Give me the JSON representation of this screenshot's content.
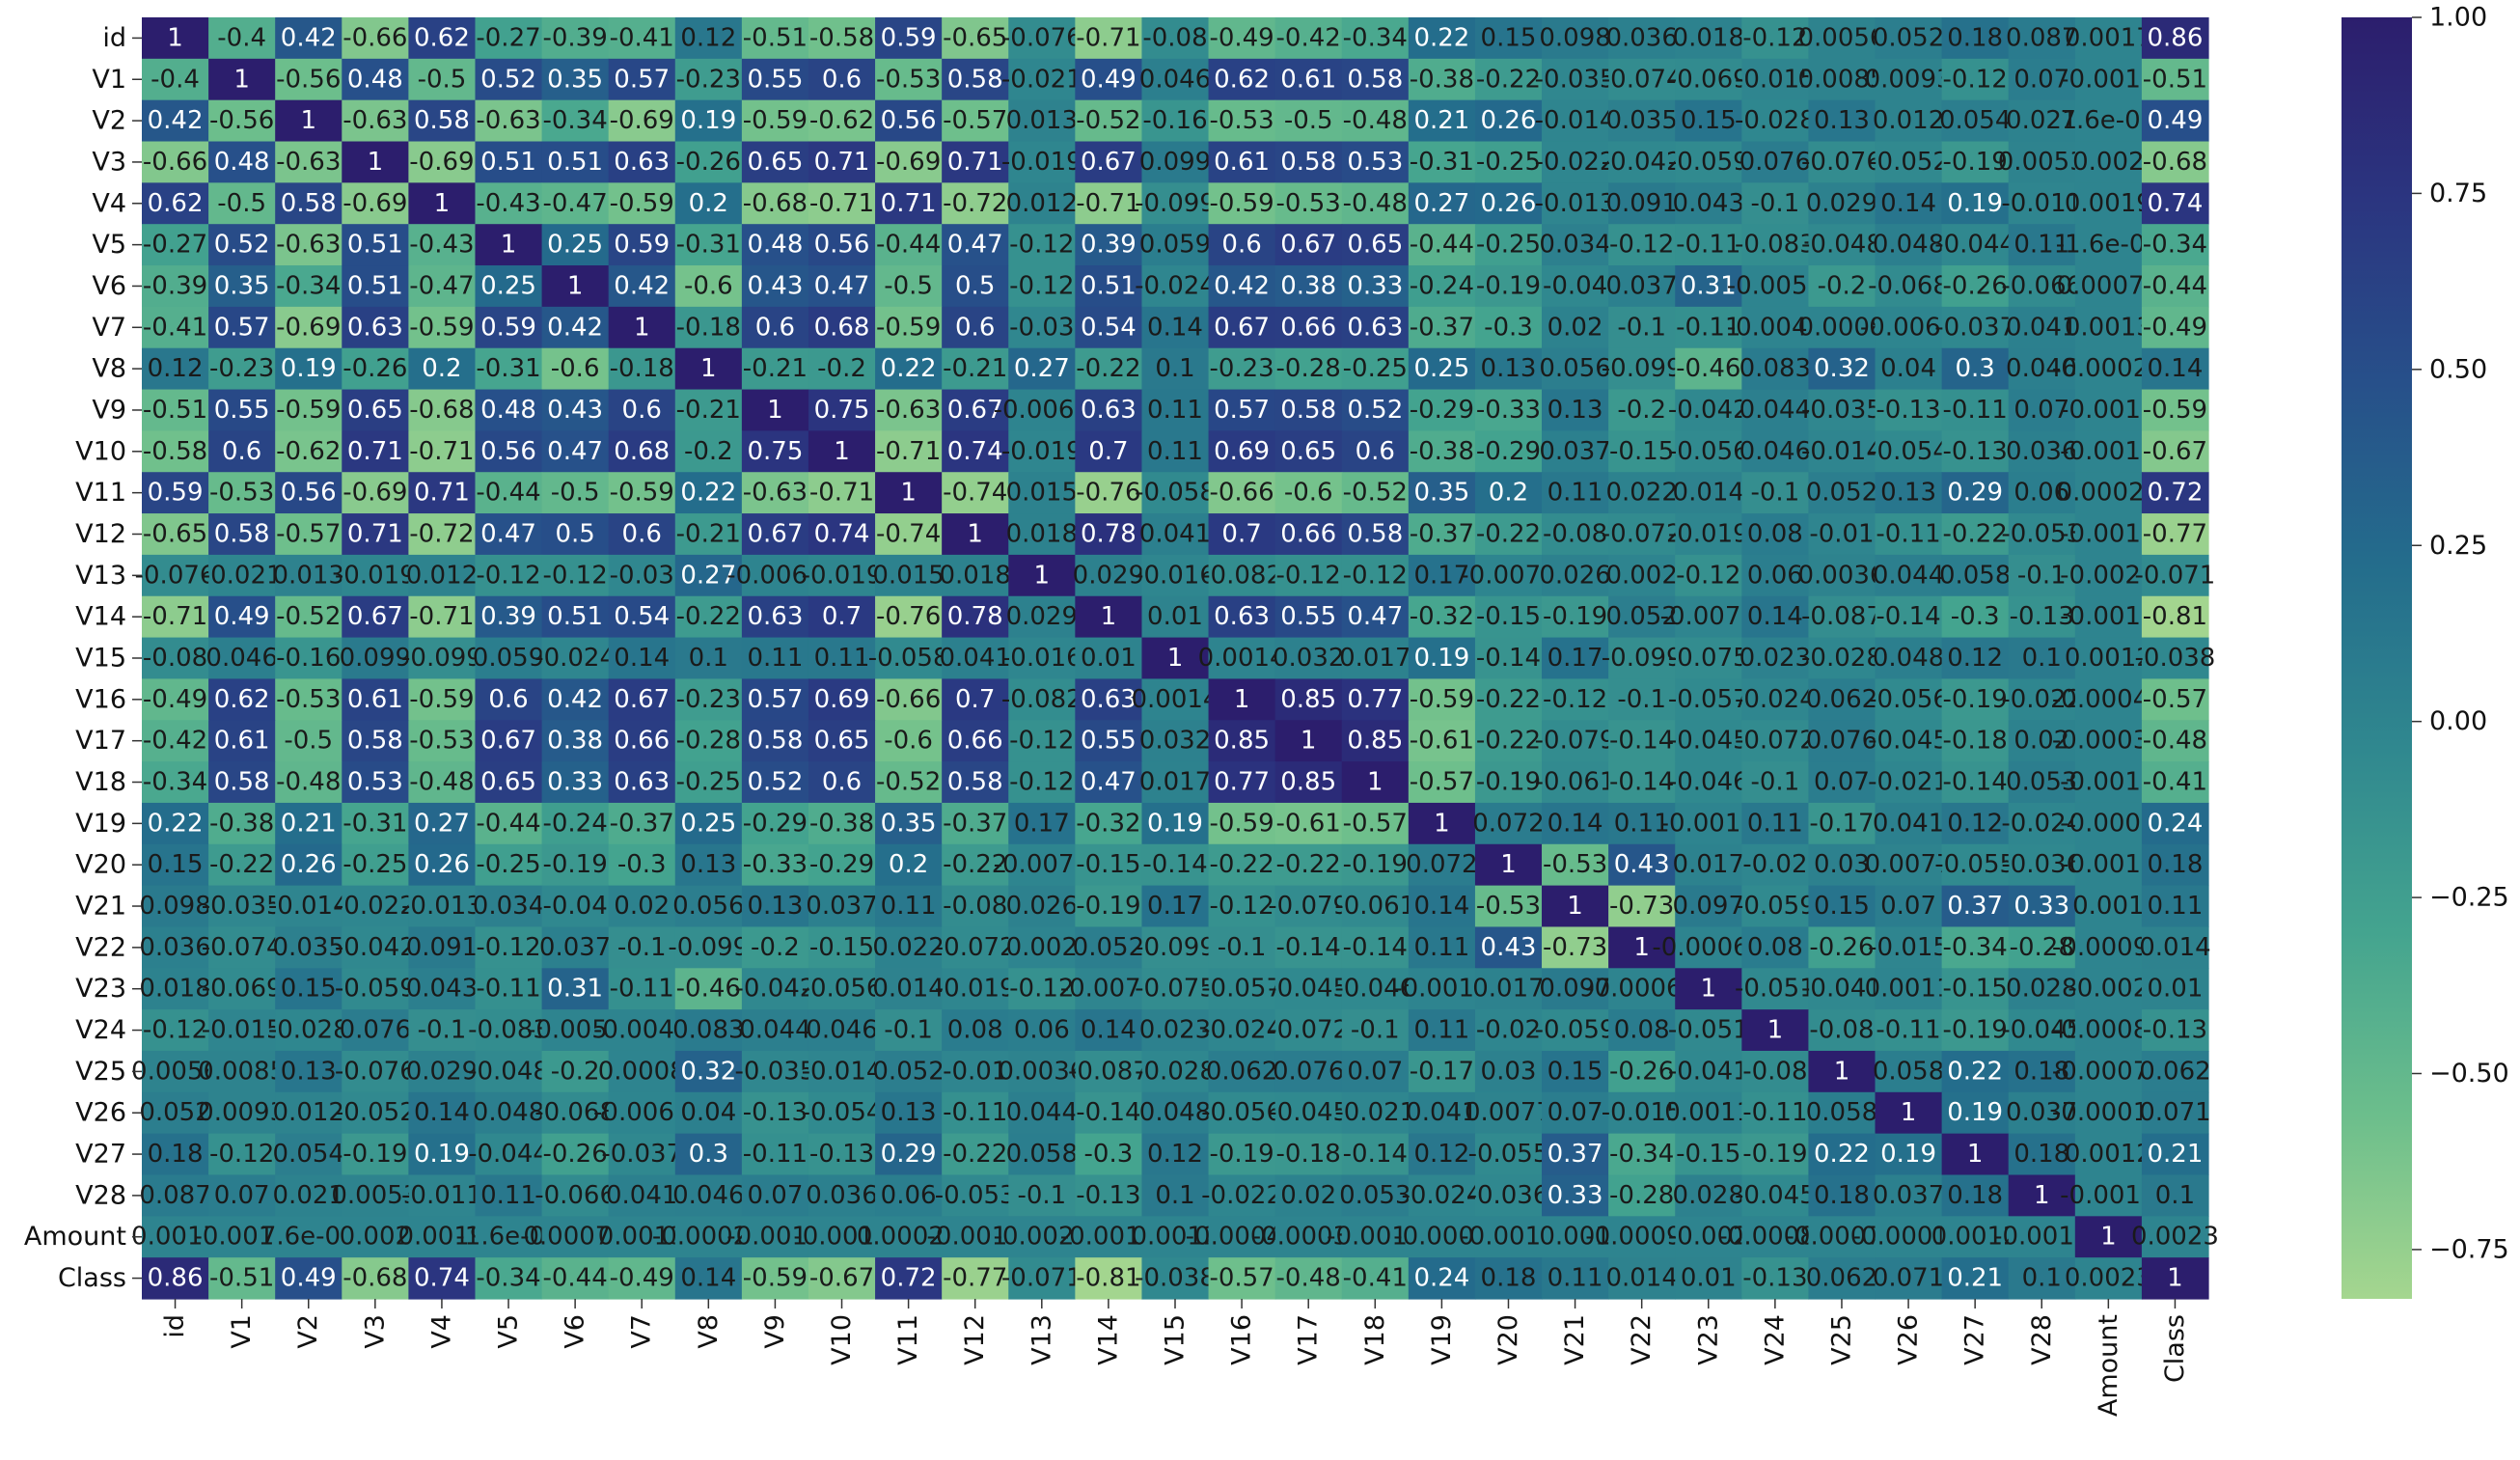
{
  "chart_data": {
    "type": "heatmap",
    "title": "",
    "xlabel": "",
    "ylabel": "",
    "labels": [
      "id",
      "V1",
      "V2",
      "V3",
      "V4",
      "V5",
      "V6",
      "V7",
      "V8",
      "V9",
      "V10",
      "V11",
      "V12",
      "V13",
      "V14",
      "V15",
      "V16",
      "V17",
      "V18",
      "V19",
      "V20",
      "V21",
      "V22",
      "V23",
      "V24",
      "V25",
      "V26",
      "V27",
      "V28",
      "Amount",
      "Class"
    ],
    "colorbar": {
      "vmin": -0.82,
      "vmax": 1.0,
      "ticks": [
        1.0,
        0.75,
        0.5,
        0.25,
        0.0,
        -0.25,
        -0.5,
        -0.75
      ],
      "tick_labels": [
        "1.00",
        "0.75",
        "0.50",
        "0.25",
        "0.00",
        "−0.25",
        "−0.50",
        "−0.75"
      ],
      "colormap": "crest",
      "colors": [
        "#a5d68f",
        "#6cbe8c",
        "#44a48f",
        "#30888f",
        "#246d8c",
        "#27508a",
        "#2b3580",
        "#2c1e6d"
      ]
    },
    "cells": [
      [
        "1",
        "-0.4",
        "0.42",
        "-0.66",
        "0.62",
        "-0.27",
        "-0.39",
        "-0.41",
        "0.12",
        "-0.51",
        "-0.58",
        "0.59",
        "-0.65",
        "-0.076",
        "-0.71",
        "-0.08",
        "-0.49",
        "-0.42",
        "-0.34",
        "0.22",
        "0.15",
        "0.098",
        "0.036",
        "0.018",
        "-0.12",
        "0.0056",
        "0.052",
        "0.18",
        "0.087",
        "0.0017",
        "0.86"
      ],
      [
        "-0.4",
        "1",
        "-0.56",
        "0.48",
        "-0.5",
        "0.52",
        "0.35",
        "0.57",
        "-0.23",
        "0.55",
        "0.6",
        "-0.53",
        "0.58",
        "-0.021",
        "0.49",
        "0.046",
        "0.62",
        "0.61",
        "0.58",
        "-0.38",
        "-0.22",
        "-0.035",
        "-0.074",
        "-0.069",
        "-0.015",
        "0.0085",
        "0.0093",
        "-0.12",
        "0.07",
        "-0.0013",
        "-0.51"
      ],
      [
        "0.42",
        "-0.56",
        "1",
        "-0.63",
        "0.58",
        "-0.63",
        "-0.34",
        "-0.69",
        "0.19",
        "-0.59",
        "-0.62",
        "0.56",
        "-0.57",
        "0.013",
        "-0.52",
        "-0.16",
        "-0.53",
        "-0.5",
        "-0.48",
        "0.21",
        "0.26",
        "-0.014",
        "0.035",
        "0.15",
        "-0.028",
        "0.13",
        "0.012",
        "0.054",
        "0.021",
        "7.6e-05",
        "0.49"
      ],
      [
        "-0.66",
        "0.48",
        "-0.63",
        "1",
        "-0.69",
        "0.51",
        "0.51",
        "0.63",
        "-0.26",
        "0.65",
        "0.71",
        "-0.69",
        "0.71",
        "-0.019",
        "0.67",
        "0.099",
        "0.61",
        "0.58",
        "0.53",
        "-0.31",
        "-0.25",
        "-0.022",
        "-0.042",
        "-0.059",
        "0.076",
        "-0.076",
        "-0.052",
        "-0.19",
        "0.0053",
        "0.002",
        "-0.68"
      ],
      [
        "0.62",
        "-0.5",
        "0.58",
        "-0.69",
        "1",
        "-0.43",
        "-0.47",
        "-0.59",
        "0.2",
        "-0.68",
        "-0.71",
        "0.71",
        "-0.72",
        "0.012",
        "-0.71",
        "-0.099",
        "-0.59",
        "-0.53",
        "-0.48",
        "0.27",
        "0.26",
        "-0.013",
        "0.091",
        "0.043",
        "-0.1",
        "0.029",
        "0.14",
        "0.19",
        "-0.011",
        "0.0019",
        "0.74"
      ],
      [
        "-0.27",
        "0.52",
        "-0.63",
        "0.51",
        "-0.43",
        "1",
        "0.25",
        "0.59",
        "-0.31",
        "0.48",
        "0.56",
        "-0.44",
        "0.47",
        "-0.12",
        "0.39",
        "0.059",
        "0.6",
        "0.67",
        "0.65",
        "-0.44",
        "-0.25",
        "0.034",
        "-0.12",
        "-0.11",
        "-0.083",
        "-0.048",
        "0.048",
        "-0.044",
        "0.11",
        "-1.6e-05",
        "-0.34"
      ],
      [
        "-0.39",
        "0.35",
        "-0.34",
        "0.51",
        "-0.47",
        "0.25",
        "1",
        "0.42",
        "-0.6",
        "0.43",
        "0.47",
        "-0.5",
        "0.5",
        "-0.12",
        "0.51",
        "-0.024",
        "0.42",
        "0.38",
        "0.33",
        "-0.24",
        "-0.19",
        "-0.04",
        "0.037",
        "0.31",
        "-0.0052",
        "-0.2",
        "-0.068",
        "-0.26",
        "-0.066",
        "0.00073",
        "-0.44"
      ],
      [
        "-0.41",
        "0.57",
        "-0.69",
        "0.63",
        "-0.59",
        "0.59",
        "0.42",
        "1",
        "-0.18",
        "0.6",
        "0.68",
        "-0.59",
        "0.6",
        "-0.03",
        "0.54",
        "0.14",
        "0.67",
        "0.66",
        "0.63",
        "-0.37",
        "-0.3",
        "0.02",
        "-0.1",
        "-0.11",
        "-0.0042",
        "0.0008",
        "-0.0065",
        "-0.037",
        "0.041",
        "0.0013",
        "-0.49"
      ],
      [
        "0.12",
        "-0.23",
        "0.19",
        "-0.26",
        "0.2",
        "-0.31",
        "-0.6",
        "-0.18",
        "1",
        "-0.21",
        "-0.2",
        "0.22",
        "-0.21",
        "0.27",
        "-0.22",
        "0.1",
        "-0.23",
        "-0.28",
        "-0.25",
        "0.25",
        "0.13",
        "0.056",
        "-0.099",
        "-0.46",
        "0.083",
        "0.32",
        "0.04",
        "0.3",
        "0.046",
        "-0.00021",
        "0.14"
      ],
      [
        "-0.51",
        "0.55",
        "-0.59",
        "0.65",
        "-0.68",
        "0.48",
        "0.43",
        "0.6",
        "-0.21",
        "1",
        "0.75",
        "-0.63",
        "0.67",
        "-0.0062",
        "0.63",
        "0.11",
        "0.57",
        "0.58",
        "0.52",
        "-0.29",
        "-0.33",
        "0.13",
        "-0.2",
        "-0.042",
        "0.044",
        "-0.035",
        "-0.13",
        "-0.11",
        "0.07",
        "-0.0016",
        "-0.59"
      ],
      [
        "-0.58",
        "0.6",
        "-0.62",
        "0.71",
        "-0.71",
        "0.56",
        "0.47",
        "0.68",
        "-0.2",
        "0.75",
        "1",
        "-0.71",
        "0.74",
        "-0.019",
        "0.7",
        "0.11",
        "0.69",
        "0.65",
        "0.6",
        "-0.38",
        "-0.29",
        "0.037",
        "-0.15",
        "-0.056",
        "0.046",
        "-0.014",
        "-0.054",
        "-0.13",
        "0.036",
        "-0.0013",
        "-0.67"
      ],
      [
        "0.59",
        "-0.53",
        "0.56",
        "-0.69",
        "0.71",
        "-0.44",
        "-0.5",
        "-0.59",
        "0.22",
        "-0.63",
        "-0.71",
        "1",
        "-0.74",
        "0.015",
        "-0.76",
        "-0.058",
        "-0.66",
        "-0.6",
        "-0.52",
        "0.35",
        "0.2",
        "0.11",
        "0.022",
        "0.014",
        "-0.1",
        "0.052",
        "0.13",
        "0.29",
        "0.06",
        "0.00029",
        "0.72"
      ],
      [
        "-0.65",
        "0.58",
        "-0.57",
        "0.71",
        "-0.72",
        "0.47",
        "0.5",
        "0.6",
        "-0.21",
        "0.67",
        "0.74",
        "-0.74",
        "1",
        "0.018",
        "0.78",
        "0.041",
        "0.7",
        "0.66",
        "0.58",
        "-0.37",
        "-0.22",
        "-0.08",
        "-0.072",
        "-0.019",
        "0.08",
        "-0.01",
        "-0.11",
        "-0.22",
        "-0.053",
        "-0.0012",
        "-0.77"
      ],
      [
        "-0.076",
        "-0.021",
        "0.013",
        "-0.019",
        "0.012",
        "-0.12",
        "-0.12",
        "-0.03",
        "0.27",
        "-0.0062",
        "-0.019",
        "0.015",
        "0.018",
        "1",
        "0.029",
        "-0.016",
        "-0.082",
        "-0.12",
        "-0.12",
        "0.17",
        "-0.0073",
        "0.026",
        "0.002",
        "-0.12",
        "0.06",
        "0.0036",
        "0.044",
        "0.058",
        "-0.1",
        "-0.0027",
        "-0.071"
      ],
      [
        "-0.71",
        "0.49",
        "-0.52",
        "0.67",
        "-0.71",
        "0.39",
        "0.51",
        "0.54",
        "-0.22",
        "0.63",
        "0.7",
        "-0.76",
        "0.78",
        "0.029",
        "1",
        "0.01",
        "0.63",
        "0.55",
        "0.47",
        "-0.32",
        "-0.15",
        "-0.19",
        "0.052",
        "-0.0076",
        "0.14",
        "-0.087",
        "-0.14",
        "-0.3",
        "-0.13",
        "-0.0014",
        "-0.81"
      ],
      [
        "-0.08",
        "0.046",
        "-0.16",
        "0.099",
        "-0.099",
        "0.059",
        "-0.024",
        "0.14",
        "0.1",
        "0.11",
        "0.11",
        "-0.058",
        "0.041",
        "-0.016",
        "0.01",
        "1",
        "0.0014",
        "0.032",
        "0.017",
        "0.19",
        "-0.14",
        "0.17",
        "-0.099",
        "-0.075",
        "0.023",
        "-0.028",
        "0.048",
        "0.12",
        "0.1",
        "0.0012",
        "-0.038"
      ],
      [
        "-0.49",
        "0.62",
        "-0.53",
        "0.61",
        "-0.59",
        "0.6",
        "0.42",
        "0.67",
        "-0.23",
        "0.57",
        "0.69",
        "-0.66",
        "0.7",
        "-0.082",
        "0.63",
        "0.0014",
        "1",
        "0.85",
        "0.77",
        "-0.59",
        "-0.22",
        "-0.12",
        "-0.1",
        "-0.057",
        "-0.024",
        "0.062",
        "-0.056",
        "-0.19",
        "-0.022",
        "-0.00045",
        "-0.57"
      ],
      [
        "-0.42",
        "0.61",
        "-0.5",
        "0.58",
        "-0.53",
        "0.67",
        "0.38",
        "0.66",
        "-0.28",
        "0.58",
        "0.65",
        "-0.6",
        "0.66",
        "-0.12",
        "0.55",
        "0.032",
        "0.85",
        "1",
        "0.85",
        "-0.61",
        "-0.22",
        "-0.079",
        "-0.14",
        "-0.045",
        "-0.072",
        "0.076",
        "-0.045",
        "-0.18",
        "0.02",
        "-0.00036",
        "-0.48"
      ],
      [
        "-0.34",
        "0.58",
        "-0.48",
        "0.53",
        "-0.48",
        "0.65",
        "0.33",
        "0.63",
        "-0.25",
        "0.52",
        "0.6",
        "-0.52",
        "0.58",
        "-0.12",
        "0.47",
        "0.017",
        "0.77",
        "0.85",
        "1",
        "-0.57",
        "-0.19",
        "-0.061",
        "-0.14",
        "-0.046",
        "-0.1",
        "0.07",
        "-0.021",
        "-0.14",
        "0.053",
        "-0.0015",
        "-0.41"
      ],
      [
        "0.22",
        "-0.38",
        "0.21",
        "-0.31",
        "0.27",
        "-0.44",
        "-0.24",
        "-0.37",
        "0.25",
        "-0.29",
        "-0.38",
        "0.35",
        "-0.37",
        "0.17",
        "-0.32",
        "0.19",
        "-0.59",
        "-0.61",
        "-0.57",
        "1",
        "0.072",
        "0.14",
        "0.11",
        "-0.0015",
        "0.11",
        "-0.17",
        "0.041",
        "0.12",
        "-0.024",
        "-0.0004",
        "0.24"
      ],
      [
        "0.15",
        "-0.22",
        "0.26",
        "-0.25",
        "0.26",
        "-0.25",
        "-0.19",
        "-0.3",
        "0.13",
        "-0.33",
        "-0.29",
        "0.2",
        "-0.22",
        "-0.0073",
        "-0.15",
        "-0.14",
        "-0.22",
        "-0.22",
        "-0.19",
        "0.072",
        "1",
        "-0.53",
        "0.43",
        "0.017",
        "-0.02",
        "0.03",
        "0.0077",
        "-0.055",
        "-0.036",
        "-0.0014",
        "0.18"
      ],
      [
        "0.098",
        "-0.035",
        "-0.014",
        "-0.022",
        "-0.013",
        "0.034",
        "-0.04",
        "0.02",
        "0.056",
        "0.13",
        "0.037",
        "0.11",
        "-0.08",
        "0.026",
        "-0.19",
        "0.17",
        "-0.12",
        "-0.079",
        "-0.061",
        "0.14",
        "-0.53",
        "1",
        "-0.73",
        "0.097",
        "-0.059",
        "0.15",
        "0.07",
        "0.37",
        "0.33",
        "0.001",
        "0.11"
      ],
      [
        "0.036",
        "-0.074",
        "0.035",
        "-0.042",
        "0.091",
        "-0.12",
        "0.037",
        "-0.1",
        "-0.099",
        "-0.2",
        "-0.15",
        "0.022",
        "-0.072",
        "0.002",
        "0.052",
        "-0.099",
        "-0.1",
        "-0.14",
        "-0.14",
        "0.11",
        "0.43",
        "-0.73",
        "1",
        "-0.00064",
        "0.08",
        "-0.26",
        "-0.015",
        "-0.34",
        "-0.28",
        "-0.00094",
        "0.014"
      ],
      [
        "0.018",
        "-0.069",
        "0.15",
        "-0.059",
        "0.043",
        "-0.11",
        "0.31",
        "-0.11",
        "-0.46",
        "-0.042",
        "-0.056",
        "0.014",
        "-0.019",
        "-0.12",
        "-0.0076",
        "-0.075",
        "-0.057",
        "-0.045",
        "-0.046",
        "-0.0015",
        "0.017",
        "0.097",
        "-0.00064",
        "1",
        "-0.051",
        "-0.041",
        "0.0011",
        "-0.15",
        "0.028",
        "-0.002",
        "0.01"
      ],
      [
        "-0.12",
        "-0.015",
        "-0.028",
        "0.076",
        "-0.1",
        "-0.083",
        "-0.0052",
        "-0.0042",
        "0.083",
        "0.044",
        "0.046",
        "-0.1",
        "0.08",
        "0.06",
        "0.14",
        "0.023",
        "-0.024",
        "-0.072",
        "-0.1",
        "0.11",
        "-0.02",
        "-0.059",
        "0.08",
        "-0.051",
        "1",
        "-0.08",
        "-0.11",
        "-0.19",
        "-0.045",
        "-0.00085",
        "-0.13"
      ],
      [
        "0.0056",
        "0.0085",
        "0.13",
        "-0.076",
        "0.029",
        "-0.048",
        "-0.2",
        "0.0008",
        "0.32",
        "-0.035",
        "-0.014",
        "0.052",
        "-0.01",
        "0.0036",
        "-0.087",
        "-0.028",
        "0.062",
        "0.076",
        "0.07",
        "-0.17",
        "0.03",
        "0.15",
        "-0.26",
        "-0.041",
        "-0.08",
        "1",
        "0.058",
        "0.22",
        "0.18",
        "-0.00072",
        "0.062"
      ],
      [
        "0.052",
        "0.0093",
        "0.012",
        "-0.052",
        "0.14",
        "0.048",
        "-0.068",
        "-0.0065",
        "0.04",
        "-0.13",
        "-0.054",
        "0.13",
        "-0.11",
        "0.044",
        "-0.14",
        "0.048",
        "-0.056",
        "-0.045",
        "-0.021",
        "0.041",
        "0.0077",
        "0.07",
        "-0.015",
        "0.0011",
        "-0.11",
        "0.058",
        "1",
        "0.19",
        "0.037",
        "-0.00012",
        "0.071"
      ],
      [
        "0.18",
        "-0.12",
        "0.054",
        "-0.19",
        "0.19",
        "-0.044",
        "-0.26",
        "-0.037",
        "0.3",
        "-0.11",
        "-0.13",
        "0.29",
        "-0.22",
        "0.058",
        "-0.3",
        "0.12",
        "-0.19",
        "-0.18",
        "-0.14",
        "0.12",
        "-0.055",
        "0.37",
        "-0.34",
        "-0.15",
        "-0.19",
        "0.22",
        "0.19",
        "1",
        "0.18",
        "0.0012",
        "0.21"
      ],
      [
        "0.087",
        "0.07",
        "0.021",
        "0.0053",
        "-0.011",
        "0.11",
        "-0.066",
        "0.041",
        "0.046",
        "0.07",
        "0.036",
        "0.06",
        "-0.053",
        "-0.1",
        "-0.13",
        "0.1",
        "-0.022",
        "0.02",
        "0.053",
        "-0.024",
        "-0.036",
        "0.33",
        "-0.28",
        "0.028",
        "-0.045",
        "0.18",
        "0.037",
        "0.18",
        "1",
        "-0.0015",
        "0.1"
      ],
      [
        "0.0017",
        "-0.0013",
        "7.6e-05",
        "0.002",
        "0.0019",
        "-1.6e-05",
        "0.00073",
        "0.0013",
        "-0.00021",
        "-0.0016",
        "-0.0013",
        "0.00029",
        "-0.0012",
        "-0.0027",
        "-0.0014",
        "0.0012",
        "-0.00045",
        "-0.00036",
        "-0.0015",
        "-0.0004",
        "-0.0014",
        "0.001",
        "-0.00094",
        "-0.002",
        "-0.00085",
        "-0.00072",
        "-0.00012",
        "0.0012",
        "-0.0015",
        "1",
        "0.0023"
      ],
      [
        "0.86",
        "-0.51",
        "0.49",
        "-0.68",
        "0.74",
        "-0.34",
        "-0.44",
        "-0.49",
        "0.14",
        "-0.59",
        "-0.67",
        "0.72",
        "-0.77",
        "-0.071",
        "-0.81",
        "-0.038",
        "-0.57",
        "-0.48",
        "-0.41",
        "0.24",
        "0.18",
        "0.11",
        "0.014",
        "0.01",
        "-0.13",
        "0.062",
        "0.071",
        "0.21",
        "0.1",
        "0.0023",
        "1"
      ]
    ]
  }
}
